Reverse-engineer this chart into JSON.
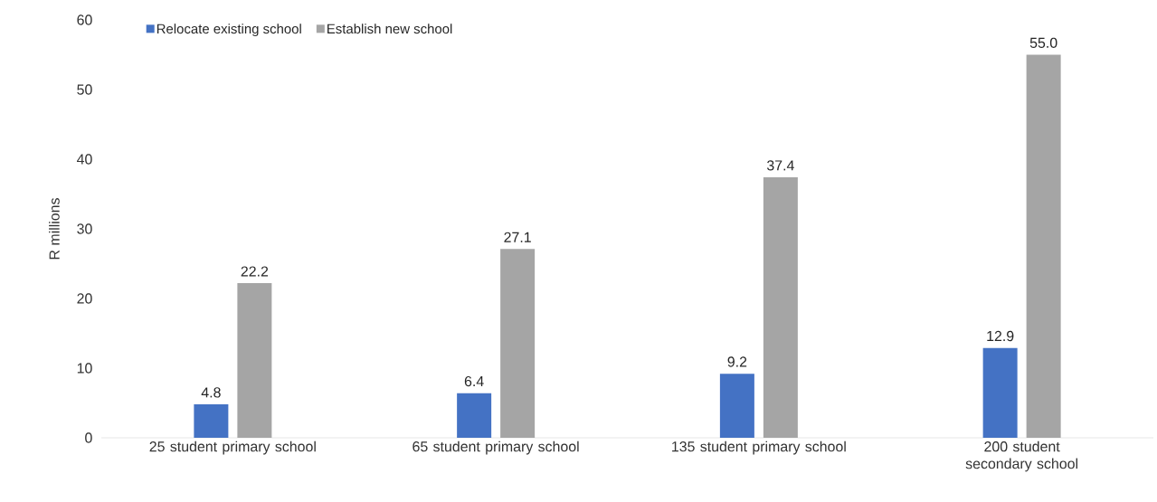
{
  "chart_data": {
    "type": "bar",
    "ylabel": "R millions",
    "categories": [
      "25 student primary school",
      "65 student primary school",
      "135 student primary school",
      "200 student secondary school"
    ],
    "series": [
      {
        "name": "Relocate existing school",
        "color": "#4472c4",
        "values": [
          4.8,
          6.4,
          9.2,
          12.9
        ],
        "value_labels": [
          "4.8",
          "6.4",
          "9.2",
          "12.9"
        ]
      },
      {
        "name": "Establish new school",
        "color": "#a5a5a5",
        "values": [
          22.2,
          27.1,
          37.4,
          55.0
        ],
        "value_labels": [
          "22.2",
          "27.1",
          "37.4",
          "55.0"
        ]
      }
    ],
    "ylim": [
      0,
      60
    ],
    "yticks": [
      0,
      10,
      20,
      30,
      40,
      50,
      60
    ],
    "grid": false,
    "legend": "top left"
  }
}
